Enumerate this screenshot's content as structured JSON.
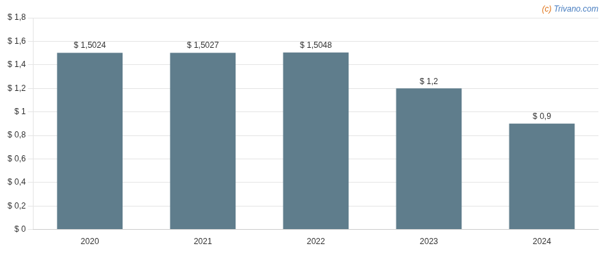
{
  "chart_data": {
    "type": "bar",
    "categories": [
      "2020",
      "2021",
      "2022",
      "2023",
      "2024"
    ],
    "values": [
      1.5024,
      1.5027,
      1.5048,
      1.2,
      0.9
    ],
    "value_labels": [
      "$ 1,5024",
      "$ 1,5027",
      "$ 1,5048",
      "$ 1,2",
      "$ 0,9"
    ],
    "data_labels": true,
    "color": "#5f7d8c",
    "ylim": [
      0,
      1.8
    ],
    "yticks": [
      {
        "value": 0,
        "label": "$ 0"
      },
      {
        "value": 0.2,
        "label": "$ 0,2"
      },
      {
        "value": 0.4,
        "label": "$ 0,4"
      },
      {
        "value": 0.6,
        "label": "$ 0,6"
      },
      {
        "value": 0.8,
        "label": "$ 0,8"
      },
      {
        "value": 1.0,
        "label": "$ 1"
      },
      {
        "value": 1.2,
        "label": "$ 1,2"
      },
      {
        "value": 1.4,
        "label": "$ 1,4"
      },
      {
        "value": 1.6,
        "label": "$ 1,6"
      },
      {
        "value": 1.8,
        "label": "$ 1,8"
      }
    ],
    "grid": true,
    "annotations": [
      {
        "text": "(c) ",
        "color": "#e07820"
      },
      {
        "text": "Trivano.com",
        "color": "#4a7fc1"
      }
    ]
  }
}
